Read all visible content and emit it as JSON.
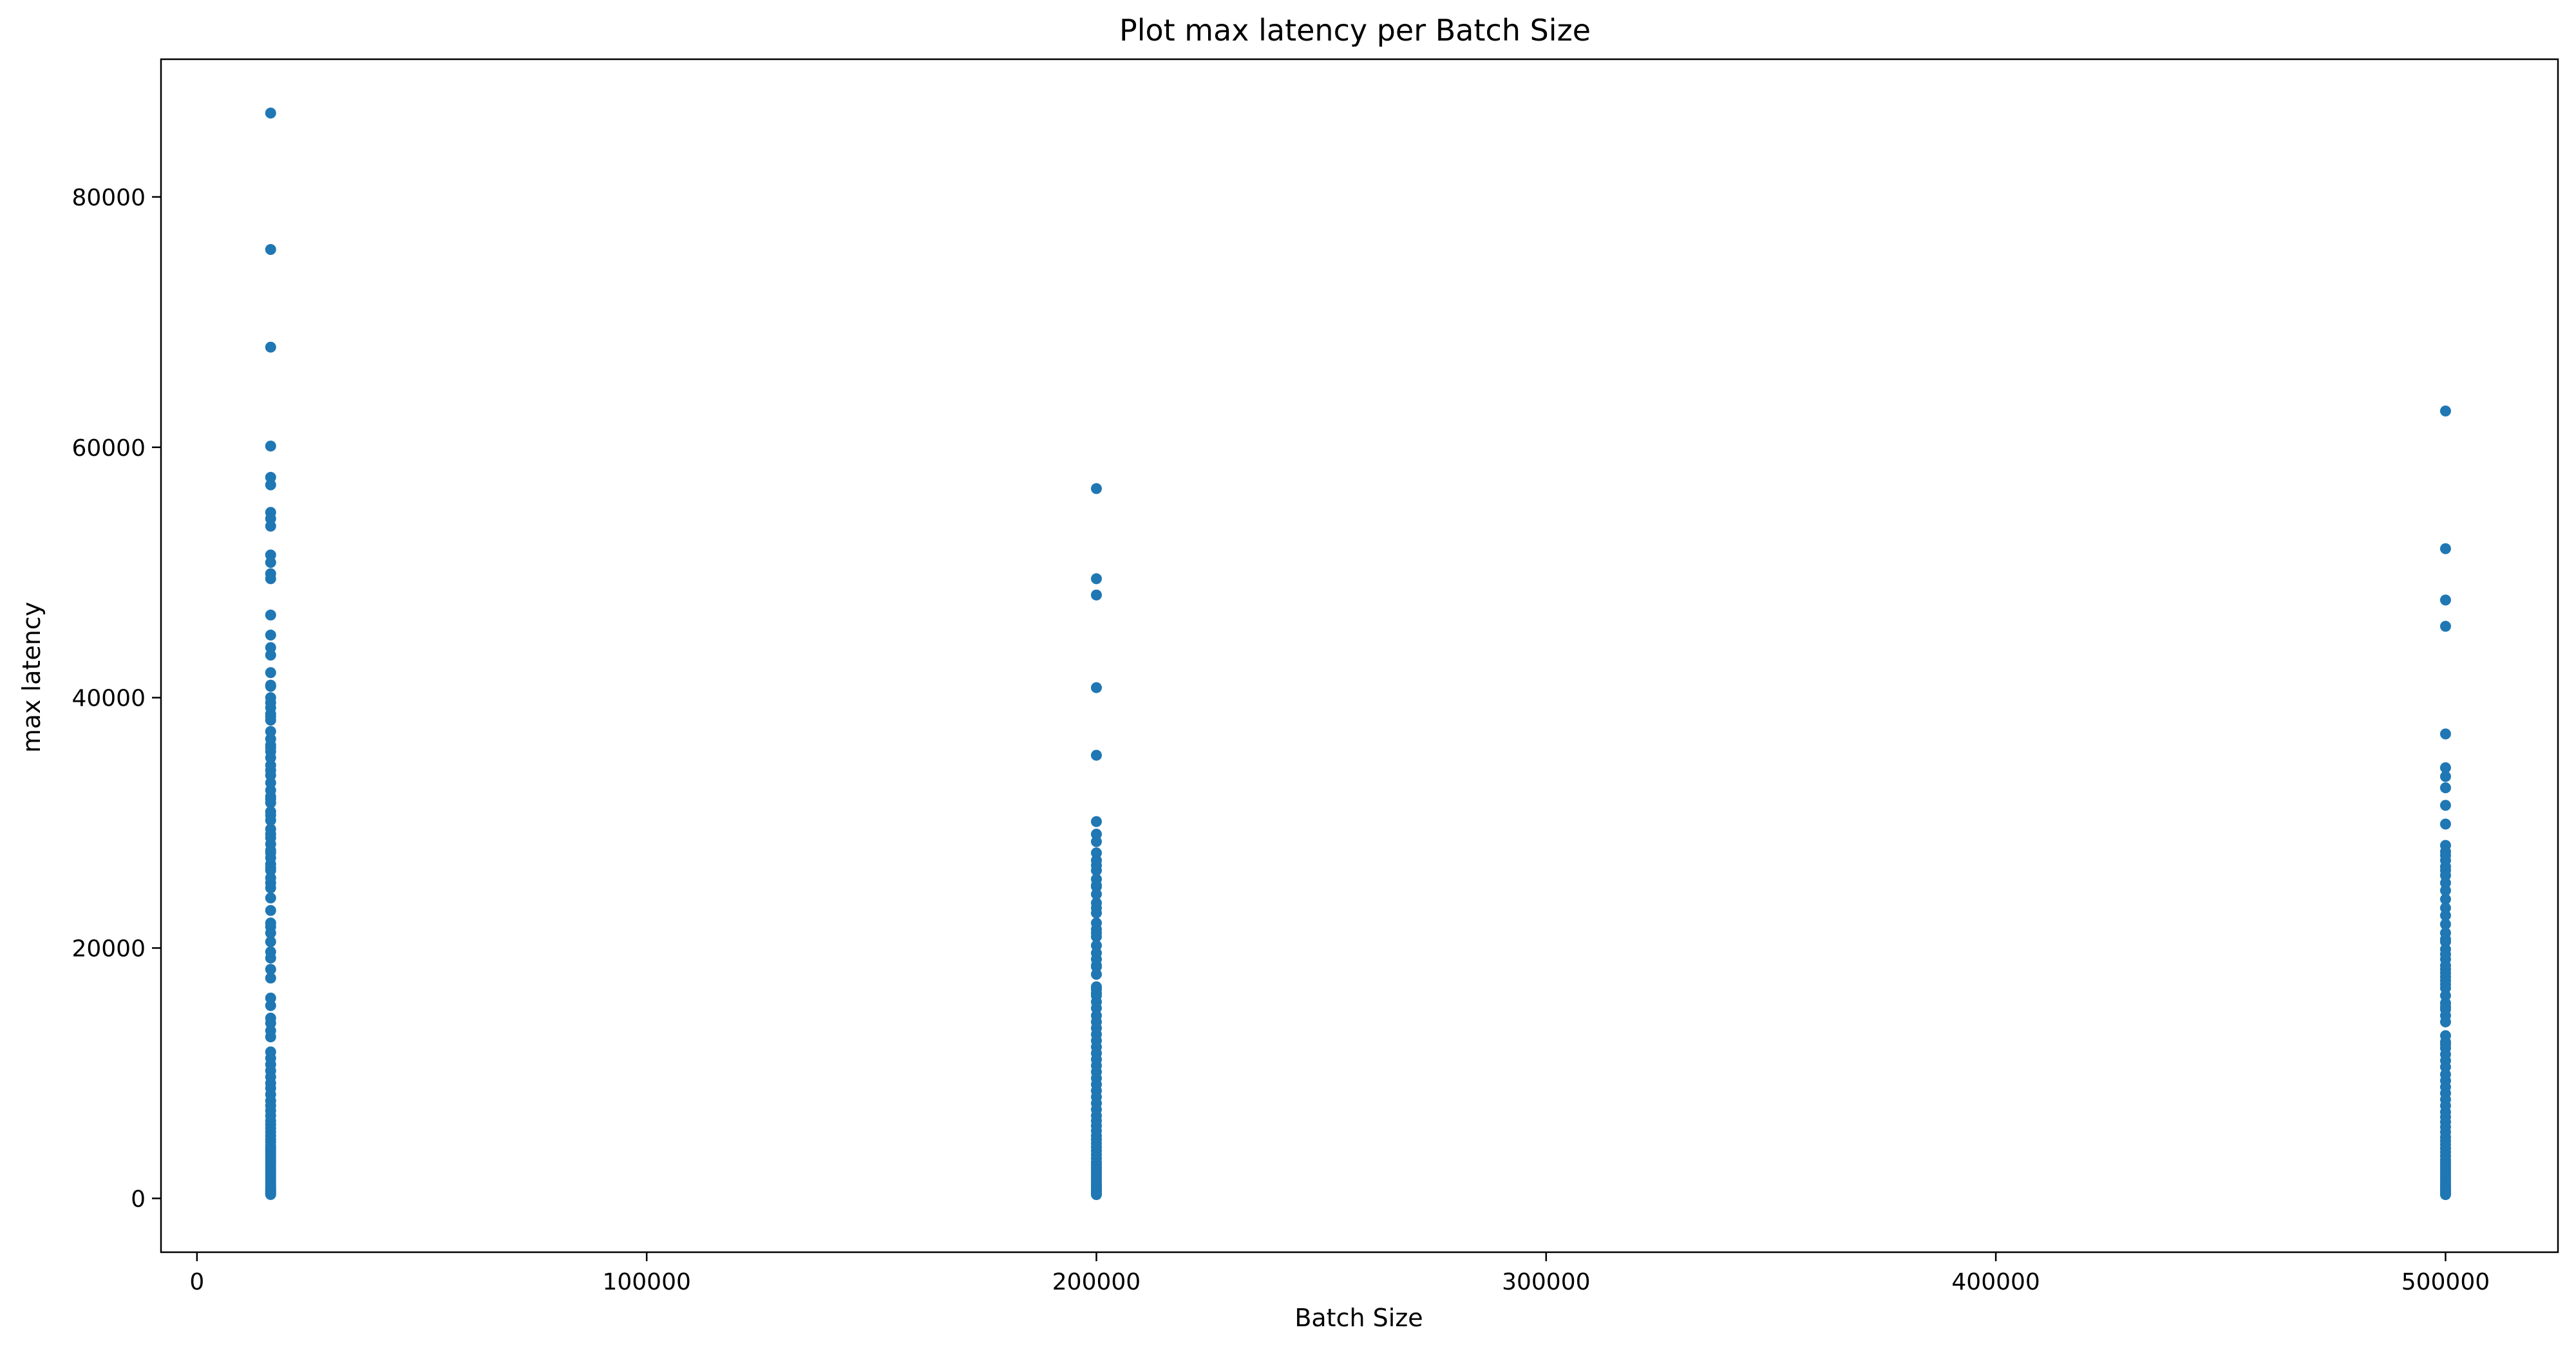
{
  "chart_data": {
    "type": "scatter",
    "title": "Plot max latency per Batch Size",
    "xlabel": "Batch Size",
    "ylabel": "max latency",
    "xlim": [
      -8000,
      525000
    ],
    "ylim": [
      -4300,
      91000
    ],
    "xticks": [
      0,
      100000,
      200000,
      300000,
      400000,
      500000
    ],
    "yticks": [
      0,
      20000,
      40000,
      60000,
      80000
    ],
    "grid": false,
    "legend": "none",
    "marker_color": "#1f77b4",
    "series": [
      {
        "x": [
          16384,
          16384,
          16384,
          16384,
          16384,
          16384,
          16384,
          16384,
          16384,
          16384,
          16384,
          16384,
          16384,
          16384,
          16384,
          16384,
          16384,
          16384,
          16384,
          16384,
          16384,
          16384,
          16384,
          16384,
          16384,
          16384,
          16384,
          16384,
          16384,
          16384,
          16384,
          16384,
          16384,
          16384,
          16384,
          16384,
          16384,
          16384,
          16384,
          16384,
          16384,
          16384,
          16384,
          16384,
          16384,
          16384,
          16384,
          16384,
          16384,
          16384,
          16384,
          16384,
          16384,
          16384,
          16384,
          16384,
          16384,
          16384,
          16384,
          16384,
          16384,
          16384,
          16384,
          16384,
          16384,
          16384,
          16384,
          16384,
          16384,
          16384,
          16384,
          16384,
          16384,
          16384,
          16384,
          16384,
          16384,
          16384,
          16384,
          16384,
          16384,
          16384,
          16384,
          16384,
          16384,
          16384,
          16384,
          16384,
          16384,
          16384,
          16384,
          16384,
          16384,
          16384,
          16384,
          16384,
          16384,
          16384,
          16384,
          16384,
          16384,
          16384,
          16384,
          16384,
          16384,
          16384,
          16384,
          16384,
          16384,
          16384,
          16384,
          16384,
          16384,
          16384,
          16384
        ],
        "y": [
          86700,
          75800,
          68000,
          60100,
          57600,
          57000,
          54800,
          54300,
          53700,
          51400,
          50800,
          49900,
          49500,
          46600,
          43400,
          40900,
          40000,
          39600,
          38700,
          38200,
          36700,
          36200,
          35700,
          35200,
          34200,
          33800,
          32600,
          32100,
          31600,
          30900,
          30200,
          29500,
          28800,
          28300,
          27800,
          27200,
          26700,
          26200,
          25600,
          24800,
          21700,
          21200,
          20500,
          19700,
          19200,
          18300,
          17600,
          15400,
          14400,
          14000,
          13400,
          12900,
          11700,
          11200,
          10700,
          10200,
          9700,
          9200,
          8800,
          8300,
          7800,
          7400,
          7000,
          6600,
          6200,
          5900,
          5600,
          5300,
          5000,
          4700,
          4500,
          4200,
          4000,
          3800,
          3600,
          3400,
          3200,
          3000,
          2800,
          2600,
          2400,
          2200,
          2000,
          1800,
          1600,
          1400,
          1200,
          1050,
          900,
          780,
          660,
          560,
          460,
          380,
          310,
          16000,
          22000,
          23000,
          24000,
          25200,
          26400,
          27600,
          29100,
          30600,
          31900,
          33200,
          34600,
          36000,
          37300,
          38500,
          39200,
          41000,
          42000,
          44000,
          45000
        ]
      },
      {
        "x": [
          200000,
          200000,
          200000,
          200000,
          200000,
          200000,
          200000,
          200000,
          200000,
          200000,
          200000,
          200000,
          200000,
          200000,
          200000,
          200000,
          200000,
          200000,
          200000,
          200000,
          200000,
          200000,
          200000,
          200000,
          200000,
          200000,
          200000,
          200000,
          200000,
          200000,
          200000,
          200000,
          200000,
          200000,
          200000,
          200000,
          200000,
          200000,
          200000,
          200000,
          200000,
          200000,
          200000,
          200000,
          200000,
          200000,
          200000,
          200000,
          200000,
          200000,
          200000,
          200000,
          200000,
          200000,
          200000,
          200000,
          200000,
          200000,
          200000,
          200000,
          200000,
          200000,
          200000,
          200000,
          200000,
          200000,
          200000,
          200000,
          200000,
          200000,
          200000,
          200000,
          200000,
          200000,
          200000,
          200000,
          200000,
          200000,
          200000,
          200000
        ],
        "y": [
          56700,
          49500,
          48200,
          40800,
          35400,
          30100,
          29100,
          28500,
          27600,
          27000,
          26200,
          25500,
          24900,
          24300,
          23600,
          22800,
          22000,
          21500,
          20900,
          20200,
          19600,
          19100,
          18600,
          17900,
          16700,
          16200,
          15700,
          15200,
          14600,
          14100,
          13600,
          13100,
          12600,
          12100,
          11600,
          11100,
          10600,
          10100,
          9600,
          9100,
          8600,
          8100,
          7600,
          7100,
          6600,
          6200,
          5800,
          5400,
          5000,
          4700,
          4400,
          4100,
          3800,
          3500,
          3200,
          2900,
          2700,
          2500,
          2300,
          2100,
          1900,
          1700,
          1500,
          1300,
          1150,
          1000,
          880,
          760,
          650,
          550,
          450,
          370,
          300,
          16400,
          16900,
          18500,
          21200,
          23200,
          25000,
          26600
        ]
      },
      {
        "x": [
          500000,
          500000,
          500000,
          500000,
          500000,
          500000,
          500000,
          500000,
          500000,
          500000,
          500000,
          500000,
          500000,
          500000,
          500000,
          500000,
          500000,
          500000,
          500000,
          500000,
          500000,
          500000,
          500000,
          500000,
          500000,
          500000,
          500000,
          500000,
          500000,
          500000,
          500000,
          500000,
          500000,
          500000,
          500000,
          500000,
          500000,
          500000,
          500000,
          500000,
          500000,
          500000,
          500000,
          500000,
          500000,
          500000,
          500000,
          500000,
          500000,
          500000,
          500000,
          500000,
          500000,
          500000,
          500000,
          500000,
          500000,
          500000,
          500000,
          500000,
          500000,
          500000,
          500000,
          500000,
          500000,
          500000,
          500000,
          500000,
          500000,
          500000,
          500000,
          500000,
          500000,
          500000,
          500000,
          500000,
          500000,
          500000,
          500000,
          500000,
          500000,
          500000,
          500000,
          500000,
          500000
        ],
        "y": [
          62900,
          51900,
          47800,
          45700,
          37100,
          34400,
          33700,
          32800,
          31400,
          29900,
          28200,
          27700,
          27000,
          26500,
          25800,
          25200,
          24600,
          23900,
          23200,
          22600,
          21900,
          21200,
          20500,
          19900,
          19100,
          18600,
          18000,
          17400,
          16800,
          16200,
          15600,
          15100,
          14600,
          14100,
          12500,
          12000,
          11500,
          11000,
          10500,
          9900,
          9400,
          8900,
          8400,
          7900,
          7400,
          6900,
          6500,
          6100,
          5700,
          5300,
          4900,
          4600,
          4300,
          4000,
          3700,
          3400,
          3100,
          2900,
          2700,
          2500,
          2300,
          2100,
          1900,
          1700,
          1500,
          1300,
          1150,
          1000,
          880,
          760,
          650,
          550,
          450,
          370,
          300,
          15300,
          17100,
          17700,
          18300,
          19500,
          20700,
          12300,
          13000,
          26200,
          27400
        ]
      }
    ]
  }
}
